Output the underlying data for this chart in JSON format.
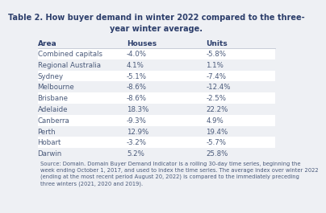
{
  "title": "Table 2. How buyer demand in winter 2022 compared to the three-\nyear winter average.",
  "columns": [
    "Area",
    "Houses",
    "Units"
  ],
  "rows": [
    [
      "Combined capitals",
      "-4.0%",
      "-5.8%"
    ],
    [
      "Regional Australia",
      "4.1%",
      "1.1%"
    ],
    [
      "Sydney",
      "-5.1%",
      "-7.4%"
    ],
    [
      "Melbourne",
      "-8.6%",
      "-12.4%"
    ],
    [
      "Brisbane",
      "-8.6%",
      "-2.5%"
    ],
    [
      "Adelaide",
      "18.3%",
      "22.2%"
    ],
    [
      "Canberra",
      "-9.3%",
      "4.9%"
    ],
    [
      "Perth",
      "12.9%",
      "19.4%"
    ],
    [
      "Hobart",
      "-3.2%",
      "-5.7%"
    ],
    [
      "Darwin",
      "5.2%",
      "25.8%"
    ]
  ],
  "footer": "Source: Domain. Domain Buyer Demand Indicator is a rolling 30-day time series, beginning the\nweek ending October 1, 2017, and used to index the time series. The average index over winter 2022\n(ending at the most recent period August 20, 2022) is compared to the immediately preceding\nthree winters (2021, 2020 and 2019).",
  "bg_color": "#eef0f4",
  "row_bg_even": "#ffffff",
  "row_bg_odd": "#eef0f4",
  "title_color": "#2c3e6b",
  "header_color": "#2c3e6b",
  "cell_color": "#4a5a7a",
  "footer_color": "#4a5a7a"
}
